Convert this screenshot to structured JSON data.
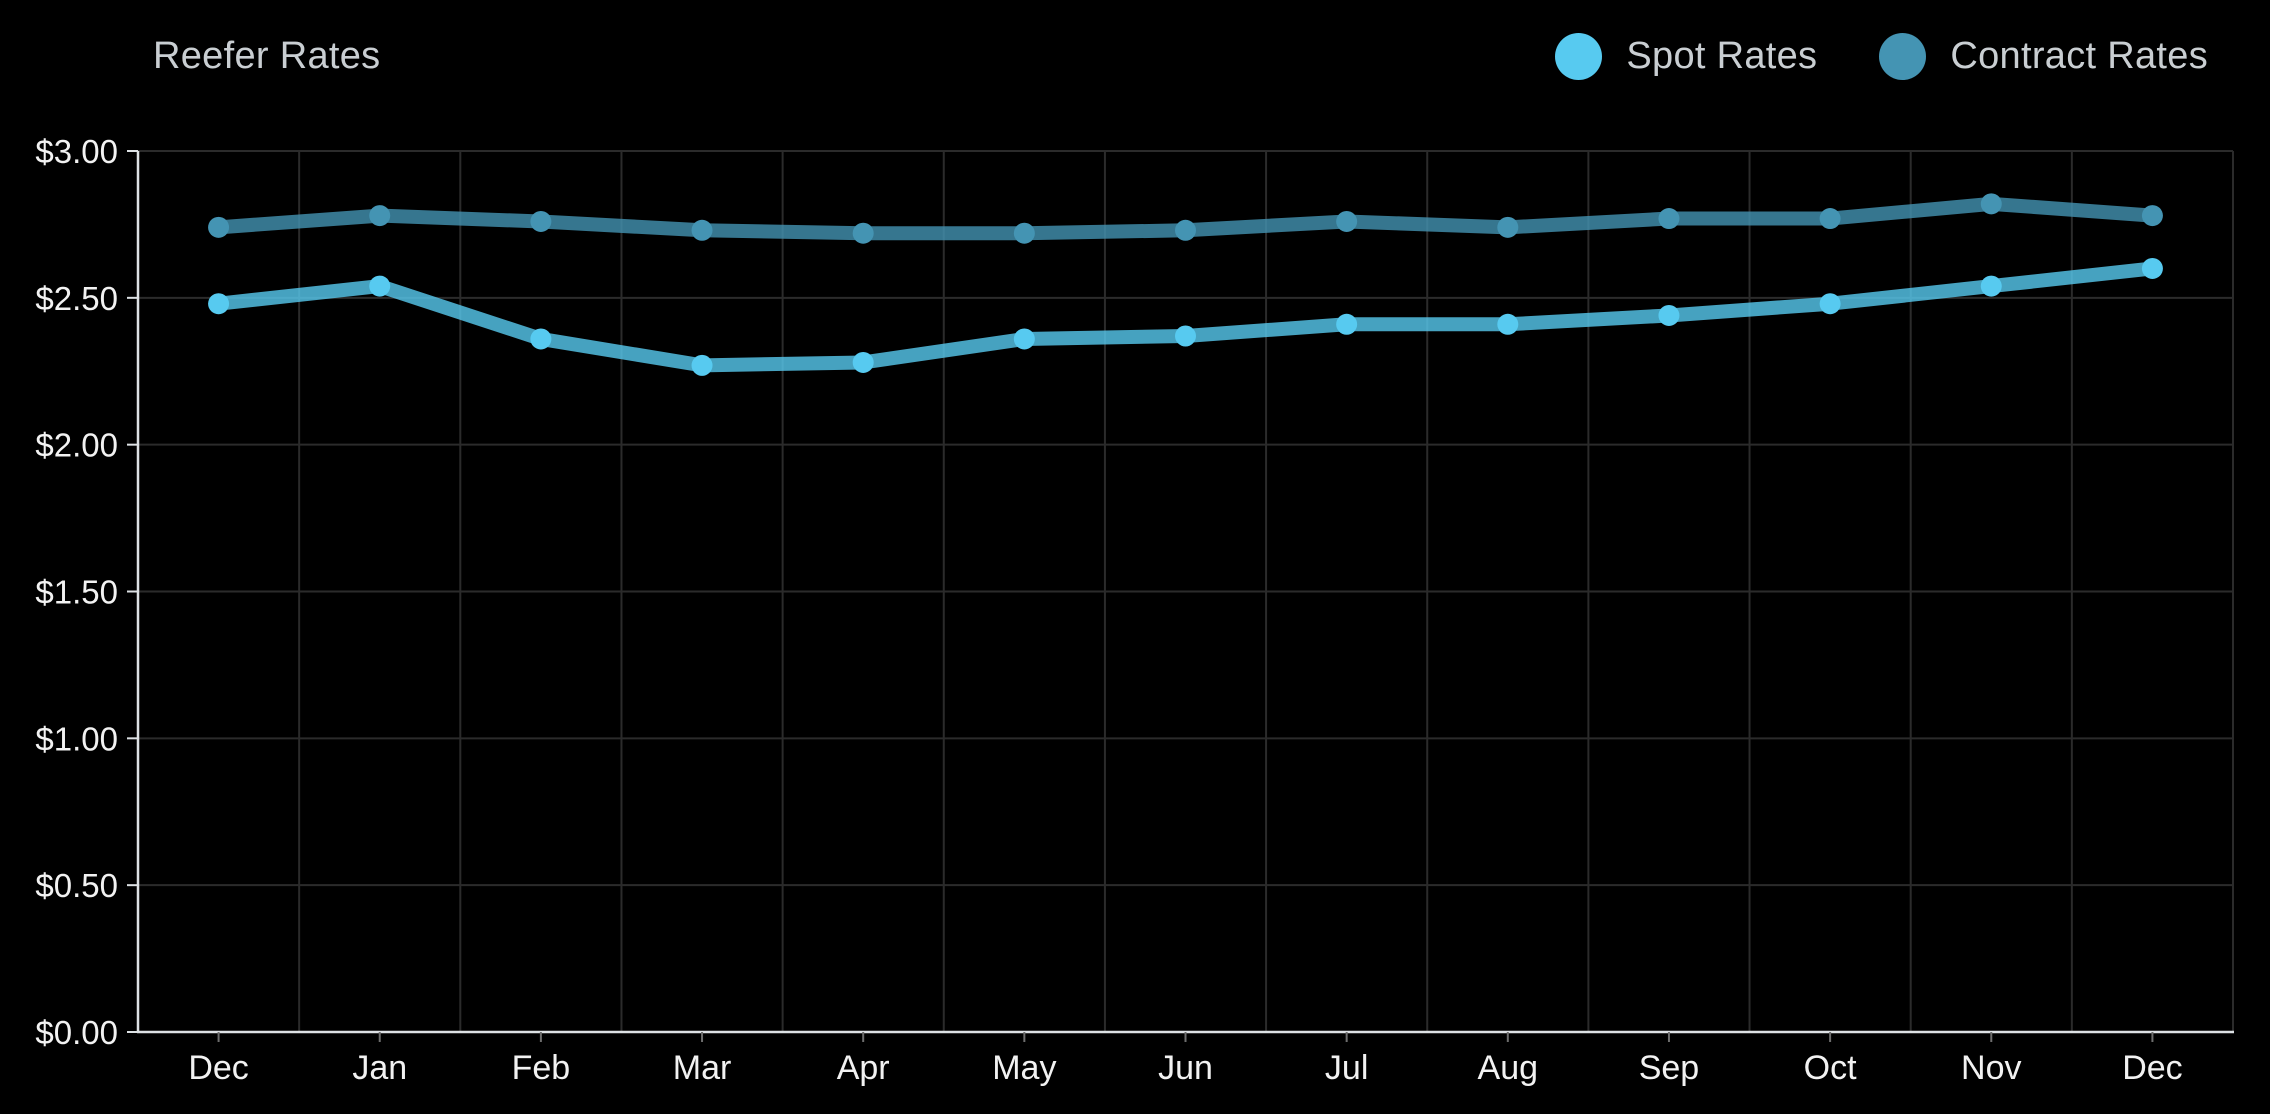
{
  "header": {
    "title": "Reefer Rates"
  },
  "legend": {
    "items": [
      {
        "label": "Spot Rates",
        "color": "#57CAF0"
      },
      {
        "label": "Contract Rates",
        "color": "#4494B3"
      }
    ]
  },
  "colors": {
    "background": "#000000",
    "grid": "#2B2B2B",
    "axis": "#DDE1E4",
    "tick_text": "#F2F2F2",
    "title_text": "#C9CED2",
    "x_tick_mark": "#6E6E6E"
  },
  "chart_data": {
    "type": "line",
    "title": "Reefer Rates",
    "xlabel": "",
    "ylabel": "",
    "categories": [
      "Dec",
      "Jan",
      "Feb",
      "Mar",
      "Apr",
      "May",
      "Jun",
      "Jul",
      "Aug",
      "Sep",
      "Oct",
      "Nov",
      "Dec"
    ],
    "series": [
      {
        "name": "Spot Rates",
        "color": "#57CAF0",
        "values": [
          2.48,
          2.54,
          2.36,
          2.27,
          2.28,
          2.36,
          2.37,
          2.41,
          2.41,
          2.44,
          2.48,
          2.54,
          2.6
        ]
      },
      {
        "name": "Contract Rates",
        "color": "#4494B3",
        "values": [
          2.74,
          2.78,
          2.76,
          2.73,
          2.72,
          2.72,
          2.73,
          2.76,
          2.74,
          2.77,
          2.77,
          2.82,
          2.78
        ]
      }
    ],
    "ylim": [
      0,
      3
    ],
    "y_tick_step": 0.5,
    "y_tick_labels": [
      "$0.00",
      "$0.50",
      "$1.00",
      "$1.50",
      "$2.00",
      "$2.50",
      "$3.00"
    ],
    "grid": true,
    "legend_position": "top-right",
    "line_width": 14,
    "point_radius": 10.5,
    "line_opacity": 0.8
  }
}
